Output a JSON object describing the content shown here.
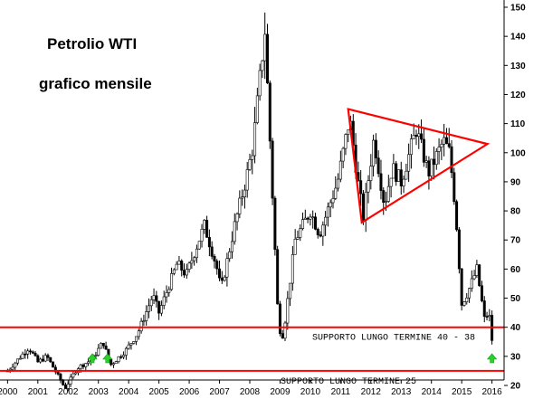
{
  "chart_data": {
    "type": "candlestick",
    "title": "Petrolio WTI",
    "subtitle": "grafico mensile",
    "y_ticks": [
      20,
      30,
      40,
      50,
      60,
      70,
      80,
      90,
      100,
      110,
      120,
      130,
      140,
      150
    ],
    "x_ticks": [
      "2000",
      "2001",
      "2002",
      "2003",
      "2004",
      "2005",
      "2006",
      "2007",
      "2008",
      "2009",
      "2010",
      "2011",
      "2012",
      "2013",
      "2014",
      "2015",
      "2016"
    ],
    "ylim": [
      15,
      150
    ],
    "xlim": [
      1999.75,
      2016.4
    ],
    "grid": false,
    "price_path": [
      [
        2000.0,
        25
      ],
      [
        2000.7,
        33
      ],
      [
        2001.0,
        28
      ],
      [
        2001.3,
        30
      ],
      [
        2001.9,
        19
      ],
      [
        2002.3,
        26
      ],
      [
        2002.8,
        29
      ],
      [
        2003.15,
        35
      ],
      [
        2003.4,
        27
      ],
      [
        2003.9,
        32
      ],
      [
        2004.3,
        38
      ],
      [
        2004.8,
        51
      ],
      [
        2005.0,
        45
      ],
      [
        2005.6,
        62
      ],
      [
        2005.9,
        58
      ],
      [
        2006.5,
        75
      ],
      [
        2006.9,
        61
      ],
      [
        2007.05,
        53
      ],
      [
        2007.5,
        75
      ],
      [
        2007.9,
        92
      ],
      [
        2008.1,
        102
      ],
      [
        2008.5,
        142
      ],
      [
        2008.95,
        40
      ],
      [
        2009.1,
        37
      ],
      [
        2009.5,
        70
      ],
      [
        2010.0,
        80
      ],
      [
        2010.3,
        72
      ],
      [
        2010.9,
        90
      ],
      [
        2011.3,
        112
      ],
      [
        2011.6,
        88
      ],
      [
        2011.75,
        78
      ],
      [
        2012.1,
        105
      ],
      [
        2012.45,
        82
      ],
      [
        2012.7,
        95
      ],
      [
        2013.0,
        90
      ],
      [
        2013.5,
        108
      ],
      [
        2013.9,
        93
      ],
      [
        2014.4,
        104
      ],
      [
        2014.6,
        100
      ],
      [
        2014.8,
        80
      ],
      [
        2015.0,
        48
      ],
      [
        2015.2,
        52
      ],
      [
        2015.5,
        60
      ],
      [
        2015.75,
        43
      ],
      [
        2015.9,
        45
      ],
      [
        2016.05,
        31
      ]
    ],
    "annotations": {
      "support_1_label": "SUPPORTO LUNGO TERMINE 40 - 38",
      "support_1_level": 40,
      "support_2_label": "SUPPORTO LUNGO TERMINE 25",
      "support_2_level": 25,
      "triangle_vertices": [
        [
          2011.25,
          115
        ],
        [
          2015.85,
          103
        ],
        [
          2011.7,
          76
        ]
      ],
      "arrows_up_x": [
        2002.8,
        2003.3,
        2016.0
      ],
      "line_color": "#ff0000",
      "arrow_color": "#2bd12b",
      "candle_color": "#000000"
    }
  }
}
